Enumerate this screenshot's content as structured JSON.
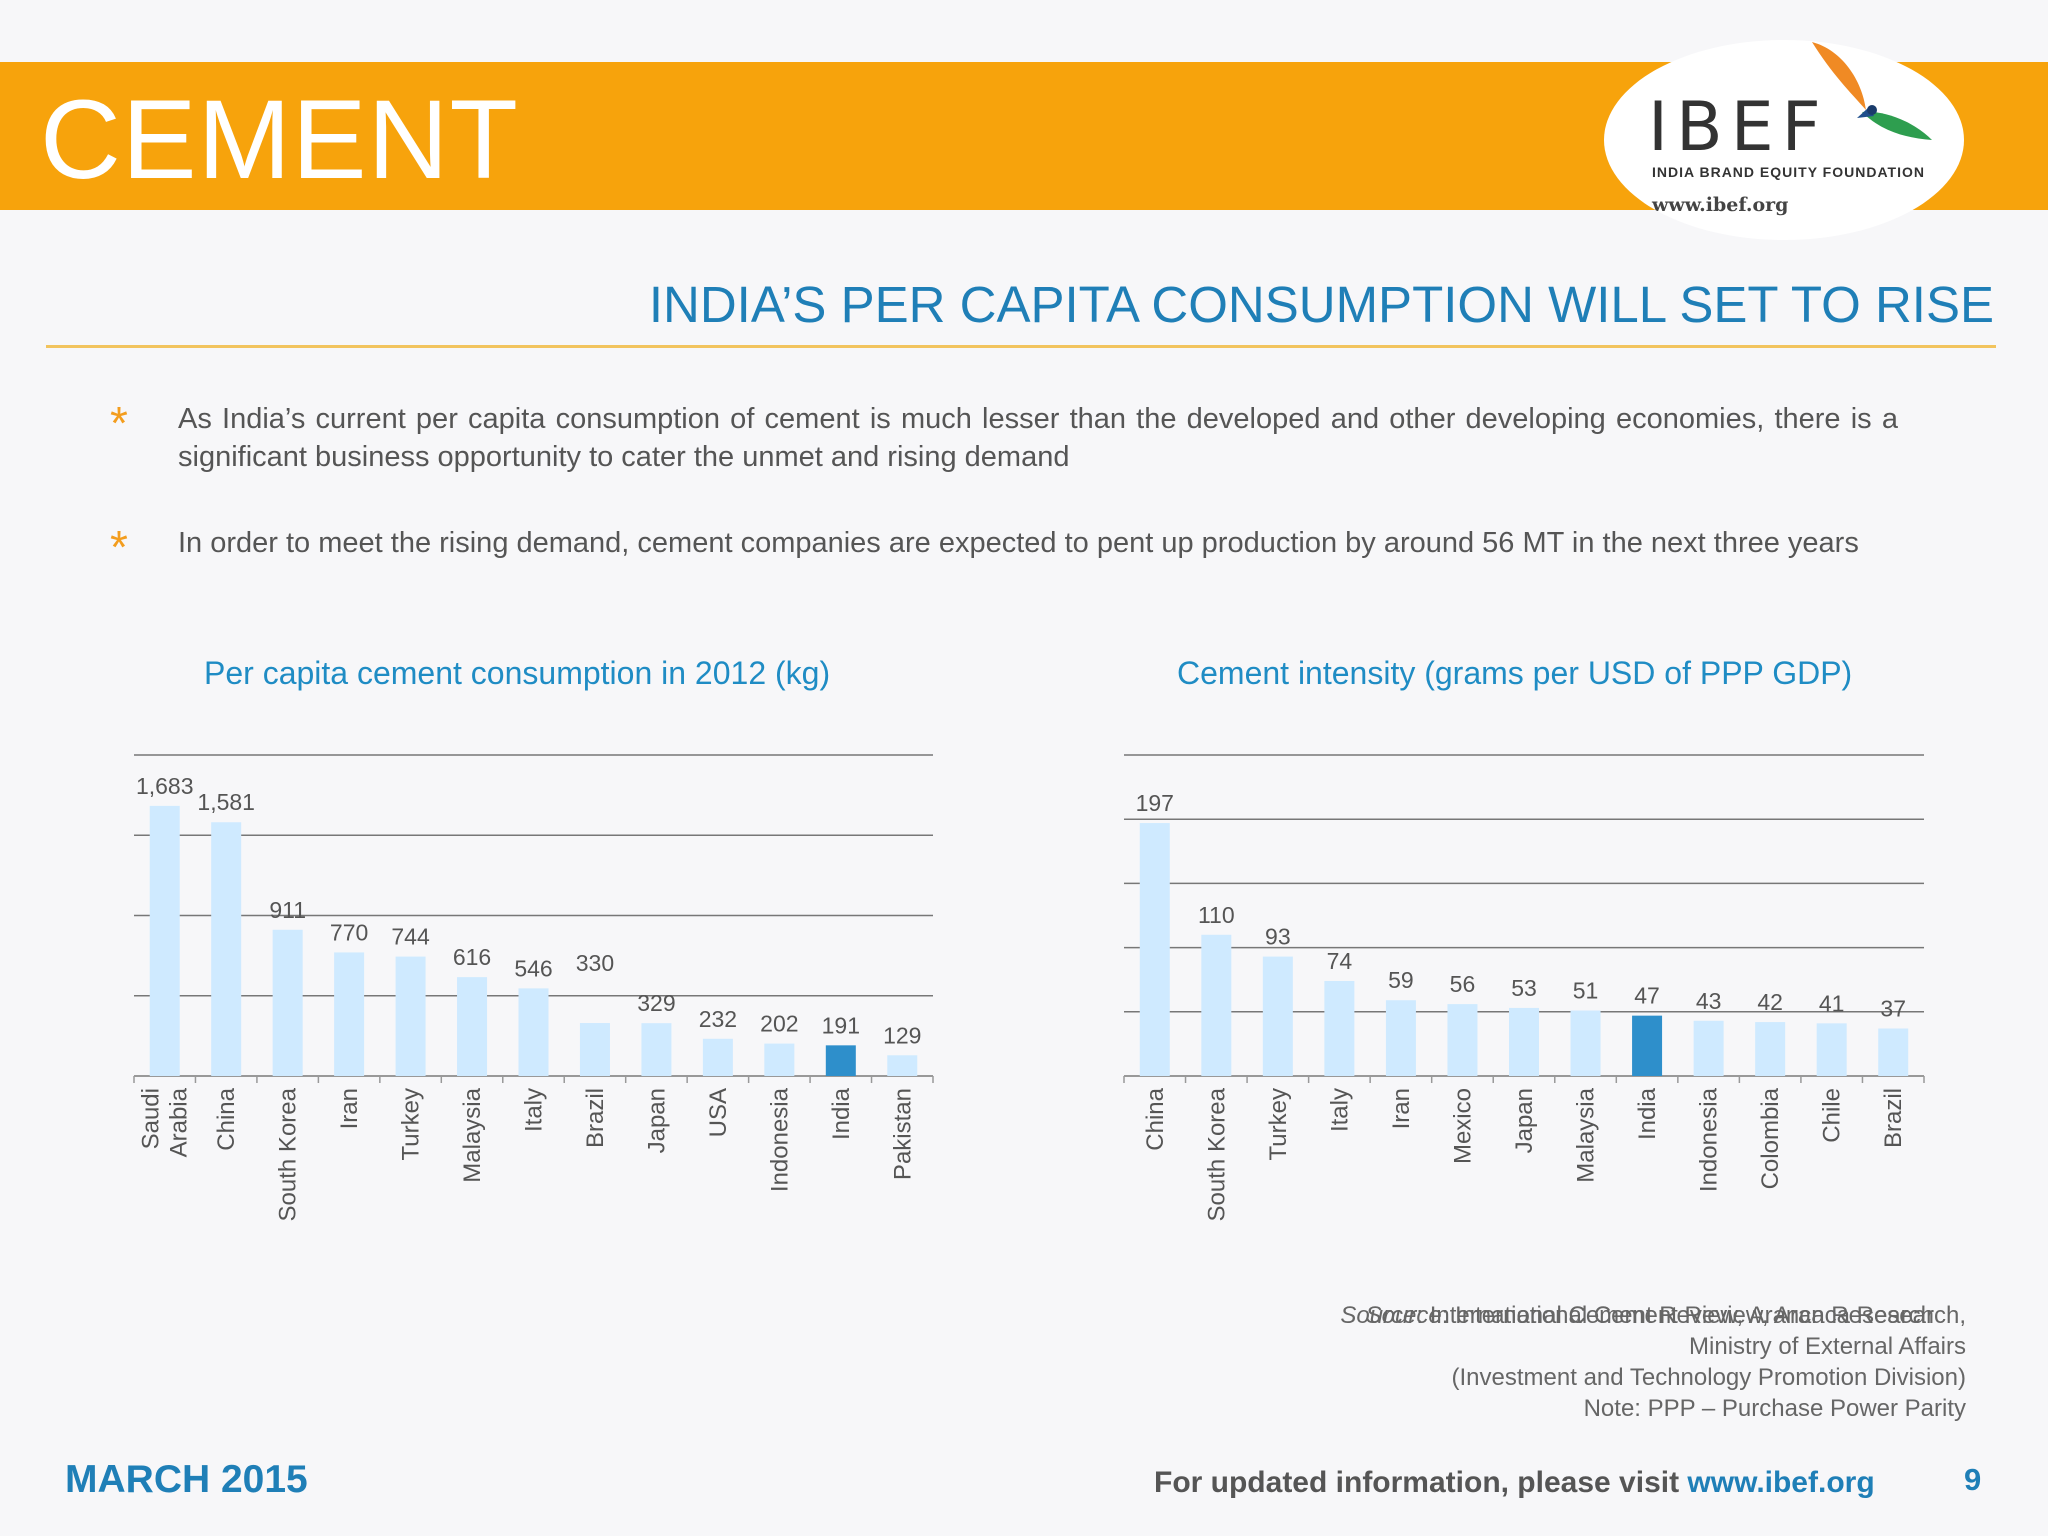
{
  "banner": {
    "title": "CEMENT"
  },
  "logo": {
    "name": "IBEF",
    "tagline": "INDIA BRAND EQUITY FOUNDATION",
    "url": "www.ibef.org",
    "icon": "ibef-bird-logo"
  },
  "heading": "INDIA’S PER CAPITA CONSUMPTION WILL SET TO RISE",
  "bullets": [
    "As India’s current per capita consumption of cement is much lesser than the developed and other developing economies, there is a significant business opportunity to cater the unmet and rising demand",
    "In order to meet the rising demand, cement companies are expected to pent up production by around 56 MT in the next three years"
  ],
  "bullet_icon": "asterisk-icon",
  "colors": {
    "accent": "#f7a30c",
    "brand_blue": "#1f7fb7",
    "bar": "#cfeaff",
    "highlight_bar": "#2e8fcb"
  },
  "chart_data": [
    {
      "type": "bar",
      "title": "Per capita cement consumption in 2012 (kg)",
      "categories": [
        "Saudi Arabia",
        "China",
        "South Korea",
        "Iran",
        "Turkey",
        "Malaysia",
        "Italy",
        "Brazil",
        "Japan",
        "USA",
        "Indonesia",
        "India",
        "Pakistan"
      ],
      "values": [
        1683,
        1581,
        911,
        770,
        744,
        616,
        546,
        330,
        329,
        232,
        202,
        191,
        129
      ],
      "labels": [
        "1,683",
        "1,581",
        "911",
        "770",
        "744",
        "616",
        "546",
        "330",
        "329",
        "232",
        "202",
        "191",
        "129"
      ],
      "highlight": "India",
      "ylim": [
        0,
        2000
      ],
      "grid": true
    },
    {
      "type": "bar",
      "title": "Cement intensity (grams per USD of PPP GDP)",
      "categories": [
        "China",
        "South Korea",
        "Turkey",
        "Italy",
        "Iran",
        "Mexico",
        "Japan",
        "Malaysia",
        "India",
        "Indonesia",
        "Colombia",
        "Chile",
        "Brazil"
      ],
      "values": [
        197,
        110,
        93,
        74,
        59,
        56,
        53,
        51,
        47,
        43,
        42,
        41,
        37
      ],
      "labels": [
        "197",
        "110",
        "93",
        "74",
        "59",
        "56",
        "53",
        "51",
        "47",
        "43",
        "42",
        "41",
        "37"
      ],
      "highlight": "India",
      "ylim": [
        0,
        250
      ],
      "grid": true
    }
  ],
  "sources": {
    "left": {
      "label": "Source",
      "text": ": International Cement Review, Aranca Research"
    },
    "right": {
      "label": "Source",
      "line1": ": International Cement Review, Aranca Research,",
      "line2": "Ministry of  External Affairs",
      "line3": "(Investment  and  Technology Promotion Division)",
      "line4": "Note: PPP – Purchase Power Parity"
    }
  },
  "footer": {
    "date": "MARCH 2015",
    "visit_text": "For updated information, please visit ",
    "visit_url": "www.ibef.org",
    "page": "9"
  }
}
